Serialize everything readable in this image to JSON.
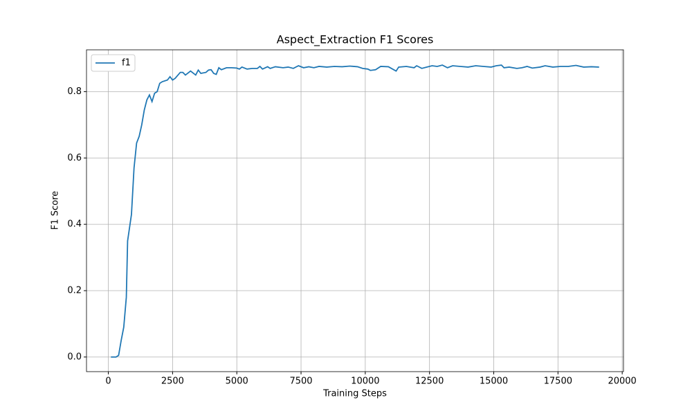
{
  "chart_data": {
    "type": "line",
    "title": "Aspect_Extraction F1 Scores",
    "xlabel": "Training Steps",
    "ylabel": "F1 Score",
    "x": [
      100,
      200,
      300,
      400,
      500,
      600,
      700,
      750,
      900,
      1000,
      1100,
      1200,
      1300,
      1400,
      1500,
      1600,
      1700,
      1800,
      1900,
      2000,
      2100,
      2300,
      2400,
      2500,
      2600,
      2800,
      2900,
      3000,
      3200,
      3400,
      3500,
      3600,
      3800,
      3900,
      4000,
      4100,
      4200,
      4300,
      4400,
      4600,
      4800,
      5000,
      5100,
      5200,
      5400,
      5600,
      5800,
      5900,
      6000,
      6200,
      6300,
      6500,
      6800,
      7000,
      7200,
      7400,
      7600,
      7800,
      8000,
      8200,
      8500,
      8800,
      9100,
      9400,
      9700,
      9900,
      10100,
      10200,
      10400,
      10600,
      10900,
      11200,
      11300,
      11600,
      11900,
      12000,
      12200,
      12400,
      12600,
      12800,
      13000,
      13200,
      13400,
      13700,
      14000,
      14300,
      14600,
      14900,
      15100,
      15300,
      15400,
      15600,
      15900,
      16100,
      16300,
      16500,
      16800,
      17000,
      17300,
      17600,
      17900,
      18200,
      18500,
      18800,
      19100
    ],
    "series": [
      {
        "name": "f1",
        "color": "#1f77b4",
        "values": [
          0,
          0,
          0,
          0.005,
          0.05,
          0.09,
          0.18,
          0.35,
          0.43,
          0.57,
          0.645,
          0.665,
          0.7,
          0.745,
          0.775,
          0.79,
          0.77,
          0.795,
          0.8,
          0.825,
          0.83,
          0.835,
          0.845,
          0.835,
          0.84,
          0.858,
          0.858,
          0.85,
          0.862,
          0.85,
          0.865,
          0.855,
          0.858,
          0.865,
          0.866,
          0.855,
          0.852,
          0.872,
          0.866,
          0.872,
          0.872,
          0.871,
          0.868,
          0.874,
          0.868,
          0.87,
          0.87,
          0.876,
          0.868,
          0.875,
          0.87,
          0.875,
          0.872,
          0.874,
          0.87,
          0.878,
          0.872,
          0.875,
          0.872,
          0.876,
          0.874,
          0.876,
          0.875,
          0.877,
          0.875,
          0.87,
          0.868,
          0.864,
          0.866,
          0.876,
          0.875,
          0.862,
          0.874,
          0.876,
          0.872,
          0.878,
          0.87,
          0.874,
          0.878,
          0.876,
          0.88,
          0.872,
          0.878,
          0.876,
          0.874,
          0.878,
          0.876,
          0.874,
          0.878,
          0.88,
          0.872,
          0.874,
          0.87,
          0.872,
          0.876,
          0.871,
          0.874,
          0.878,
          0.874,
          0.876,
          0.876,
          0.879,
          0.874,
          0.875,
          0.874
        ]
      }
    ],
    "xlim": [
      -850,
      20050
    ],
    "ylim": [
      -0.0441,
      0.926
    ],
    "xticks": [
      0,
      2500,
      5000,
      7500,
      10000,
      12500,
      15000,
      17500,
      20000
    ],
    "yticks": [
      {
        "value": 0,
        "label": "0.0"
      },
      0.2,
      0.4,
      0.6,
      0.8
    ],
    "grid": true,
    "legend": "upper left"
  }
}
